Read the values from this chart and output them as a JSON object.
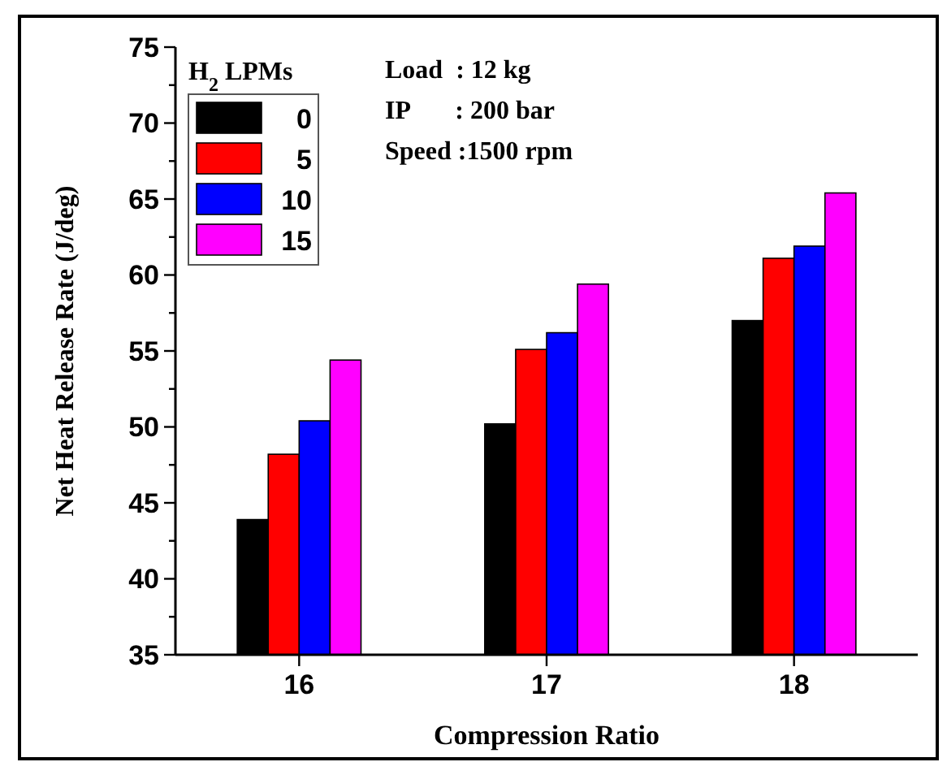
{
  "chart_data": {
    "type": "bar",
    "xlabel": "Compression Ratio",
    "ylabel": "Net Heat Release Rate (J/deg)",
    "legend_title": "H$_{2}$ LPMs",
    "legend": "top left",
    "categories": [
      "16",
      "17",
      "18"
    ],
    "series": [
      {
        "name": "0",
        "color": "#000000",
        "values": [
          43.9,
          50.2,
          57.0
        ]
      },
      {
        "name": "5",
        "color": "#ff0000",
        "values": [
          48.2,
          55.1,
          61.1
        ]
      },
      {
        "name": "10",
        "color": "#0000ff",
        "values": [
          50.4,
          56.2,
          61.9
        ]
      },
      {
        "name": "15",
        "color": "#ff00ff",
        "values": [
          54.4,
          59.4,
          65.4
        ]
      }
    ],
    "ylim": [
      35,
      75
    ],
    "yticks": [
      35,
      {
        "value": 37.5,
        "label": null
      },
      40,
      {
        "value": 42.5,
        "label": null
      },
      45,
      {
        "value": 47.5,
        "label": null
      },
      50,
      {
        "value": 52.5,
        "label": null
      },
      55,
      {
        "value": 57.5,
        "label": null
      },
      60,
      {
        "value": 62.5,
        "label": null
      },
      65,
      {
        "value": 67.5,
        "label": null
      },
      70,
      {
        "value": 72.5,
        "label": null
      },
      75
    ],
    "grid": false,
    "annotations": [
      "Load  : 12 kg",
      "IP       : 200 bar",
      "Speed :1500 rpm"
    ]
  }
}
